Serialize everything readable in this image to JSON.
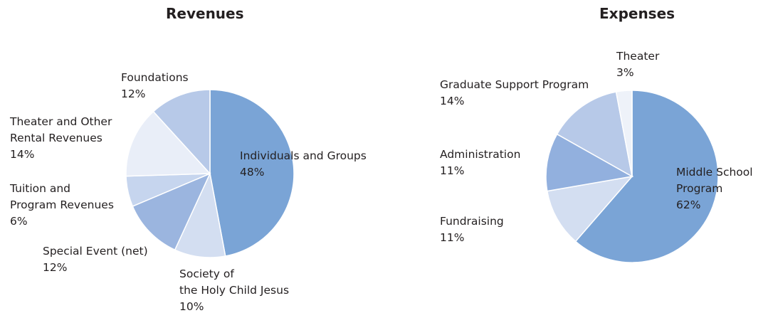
{
  "chart_data": [
    {
      "type": "pie",
      "title": "Revenues",
      "slices": [
        {
          "label": [
            "Individuals and Groups"
          ],
          "value": 48,
          "pct": "48%",
          "color": "#7aa4d6"
        },
        {
          "label": [
            "Society of",
            "the Holy Child Jesus"
          ],
          "value": 10,
          "pct": "10%",
          "color": "#d3def1"
        },
        {
          "label": [
            "Special Event (net)"
          ],
          "value": 12,
          "pct": "12%",
          "color": "#9bb5df"
        },
        {
          "label": [
            "Tuition and",
            "Program Revenues"
          ],
          "value": 6,
          "pct": "6%",
          "color": "#c6d5ee"
        },
        {
          "label": [
            "Theater and Other",
            "Rental Revenues"
          ],
          "value": 14,
          "pct": "14%",
          "color": "#e9eef8"
        },
        {
          "label": [
            "Foundations"
          ],
          "value": 12,
          "pct": "12%",
          "color": "#b7c9e8"
        }
      ]
    },
    {
      "type": "pie",
      "title": "Expenses",
      "slices": [
        {
          "label": [
            "Middle School",
            "Program"
          ],
          "value": 62,
          "pct": "62%",
          "color": "#7aa4d6"
        },
        {
          "label": [
            "Fundraising"
          ],
          "value": 11,
          "pct": "11%",
          "color": "#d3def1"
        },
        {
          "label": [
            "Administration"
          ],
          "value": 11,
          "pct": "11%",
          "color": "#92b0de"
        },
        {
          "label": [
            "Graduate Support Program"
          ],
          "value": 14,
          "pct": "14%",
          "color": "#b7c9e8"
        },
        {
          "label": [
            "Theater"
          ],
          "value": 3,
          "pct": "3%",
          "color": "#eef2f9"
        }
      ]
    }
  ]
}
